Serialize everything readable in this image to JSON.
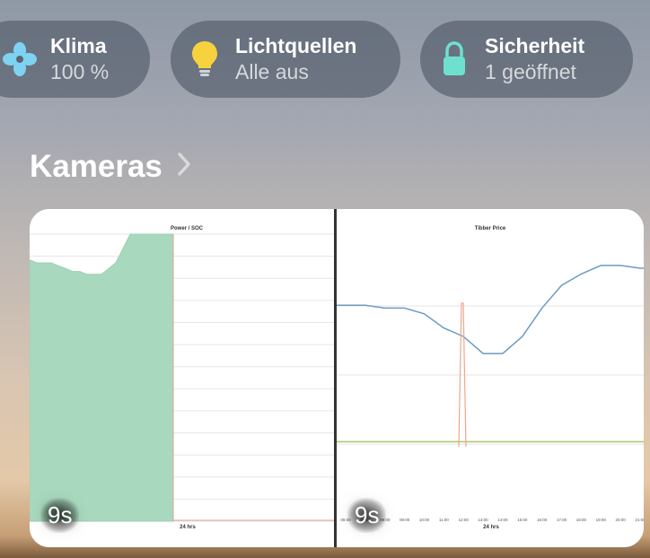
{
  "tiles": [
    {
      "title": "Klima",
      "subtitle": "100 %",
      "icon": "fan-icon",
      "icon_color": "#7ed3f2"
    },
    {
      "title": "Lichtquellen",
      "subtitle": "Alle aus",
      "icon": "lightbulb-icon",
      "icon_color": "#f7d23e"
    },
    {
      "title": "Sicherheit",
      "subtitle": "1 geöffnet",
      "icon": "lock-icon",
      "icon_color": "#6ee0cf"
    }
  ],
  "section": {
    "title": "Kameras",
    "chevron": "chevron-right-icon"
  },
  "cameras": [
    {
      "badge": "9s",
      "chart_data": {
        "type": "area",
        "title": "Power / SOC",
        "xlabel": "24 hrs",
        "series": [
          {
            "values": [
              0.91,
              0.9,
              0.9,
              0.9,
              0.89,
              0.88,
              0.87,
              0.87,
              0.86,
              0.86,
              0.86,
              0.88,
              0.9,
              0.95,
              1.0,
              1.0,
              1.0,
              1.0,
              1.0,
              1.0,
              1.0,
              0.0
            ]
          }
        ]
      }
    },
    {
      "badge": "9s",
      "chart_data": {
        "type": "line",
        "title": "Tibber Price",
        "xlabel": "24 hrs",
        "categories": [
          "06:00",
          "07:00",
          "08:00",
          "09:00",
          "10:00",
          "11:00",
          "12:00",
          "13:00",
          "14:00",
          "15:00",
          "16:00",
          "17:00",
          "18:00",
          "19:00",
          "20:00",
          "21:00"
        ],
        "series": [
          {
            "color": "#6b9cc4",
            "values": [
              0.75,
              0.75,
              0.74,
              0.74,
              0.72,
              0.67,
              0.64,
              0.58,
              0.58,
              0.64,
              0.74,
              0.82,
              0.86,
              0.89,
              0.89,
              0.88
            ]
          },
          {
            "color": "#a6c66a",
            "values": [
              0.27,
              0.27,
              0.27,
              0.27,
              0.27,
              0.27,
              0.27,
              0.27,
              0.27,
              0.27,
              0.27,
              0.27,
              0.27,
              0.27,
              0.27,
              0.27
            ]
          }
        ]
      }
    }
  ]
}
